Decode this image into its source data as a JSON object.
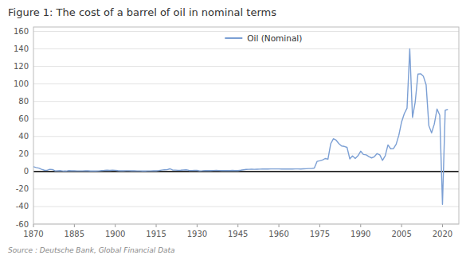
{
  "chart_data": {
    "type": "line",
    "title": "Figure 1: The cost of a barrel of oil in nominal terms",
    "source": "Source : Deutsche Bank, Global Financial Data",
    "x": [
      1870,
      1871,
      1872,
      1873,
      1874,
      1875,
      1876,
      1877,
      1878,
      1879,
      1880,
      1881,
      1882,
      1883,
      1884,
      1885,
      1886,
      1887,
      1888,
      1889,
      1890,
      1891,
      1892,
      1893,
      1894,
      1895,
      1896,
      1897,
      1898,
      1899,
      1900,
      1901,
      1902,
      1903,
      1904,
      1905,
      1906,
      1907,
      1908,
      1909,
      1910,
      1911,
      1912,
      1913,
      1914,
      1915,
      1916,
      1917,
      1918,
      1919,
      1920,
      1921,
      1922,
      1923,
      1924,
      1925,
      1926,
      1927,
      1928,
      1929,
      1930,
      1931,
      1932,
      1933,
      1934,
      1935,
      1936,
      1937,
      1938,
      1939,
      1940,
      1941,
      1942,
      1943,
      1944,
      1945,
      1946,
      1947,
      1948,
      1949,
      1950,
      1951,
      1952,
      1953,
      1954,
      1955,
      1956,
      1957,
      1958,
      1959,
      1960,
      1961,
      1962,
      1963,
      1964,
      1965,
      1966,
      1967,
      1968,
      1969,
      1970,
      1971,
      1972,
      1973,
      1974,
      1975,
      1976,
      1977,
      1978,
      1979,
      1980,
      1981,
      1982,
      1983,
      1984,
      1985,
      1986,
      1987,
      1988,
      1989,
      1990,
      1991,
      1992,
      1993,
      1994,
      1995,
      1996,
      1997,
      1998,
      1999,
      2000,
      2001,
      2002,
      2003,
      2004,
      2005,
      2006,
      2007,
      2008,
      2009,
      2010,
      2011,
      2012,
      2013,
      2014,
      2015,
      2016,
      2017,
      2018,
      2019,
      2020,
      2021,
      2022
    ],
    "series": [
      {
        "name": "Oil (Nominal)",
        "color": "#7B9FD4",
        "values": [
          5.5,
          4.5,
          3.8,
          2.5,
          1.5,
          1.35,
          2.5,
          2.2,
          0.7,
          0.8,
          0.95,
          0.5,
          0.5,
          1.0,
          0.8,
          0.85,
          0.7,
          0.67,
          0.7,
          0.75,
          0.77,
          0.56,
          0.51,
          0.6,
          0.7,
          1.0,
          1.2,
          1.5,
          1.3,
          1.4,
          1.35,
          0.96,
          0.8,
          0.85,
          0.86,
          0.87,
          0.73,
          0.72,
          0.65,
          0.7,
          0.61,
          0.61,
          0.64,
          0.65,
          0.73,
          0.8,
          1.1,
          1.56,
          1.98,
          2.01,
          3.07,
          1.73,
          1.61,
          1.34,
          1.43,
          1.68,
          1.88,
          1.3,
          1.17,
          1.27,
          1.19,
          0.65,
          0.87,
          1.17,
          1.0,
          0.97,
          1.09,
          1.24,
          1.13,
          1.05,
          1.0,
          1.05,
          1.05,
          1.25,
          1.05,
          1.05,
          1.41,
          1.93,
          2.4,
          2.53,
          2.58,
          2.53,
          2.64,
          2.73,
          2.77,
          2.77,
          2.83,
          2.92,
          2.97,
          2.9,
          2.91,
          2.89,
          2.87,
          2.89,
          2.88,
          2.86,
          2.9,
          2.92,
          2.86,
          3.09,
          3.18,
          3.39,
          3.39,
          4.0,
          11.5,
          12.21,
          13.1,
          14.85,
          14.02,
          31.6,
          37.42,
          35.75,
          31.83,
          29.08,
          28.63,
          27.56,
          14.43,
          17.75,
          14.87,
          17.97,
          23.19,
          19.46,
          19.03,
          17.02,
          15.53,
          16.86,
          20.46,
          19.09,
          12.72,
          17.97,
          30.37,
          25.98,
          26.18,
          31.08,
          41.47,
          56.64,
          66.05,
          72.39,
          140.0,
          61.74,
          79.48,
          111.26,
          111.63,
          108.66,
          98.97,
          52.39,
          44.05,
          54.19,
          71.34,
          64.37,
          -37.63,
          70.0,
          71.0
        ]
      }
    ],
    "xlim": [
      1870,
      2026
    ],
    "ylim": [
      -60,
      165
    ],
    "xticks": [
      1870,
      1885,
      1900,
      1915,
      1930,
      1945,
      1960,
      1975,
      1990,
      2005,
      2020
    ],
    "yticks": [
      -60,
      -40,
      -20,
      0,
      20,
      40,
      60,
      80,
      100,
      120,
      140,
      160
    ],
    "grid": "y",
    "legend": "top"
  }
}
